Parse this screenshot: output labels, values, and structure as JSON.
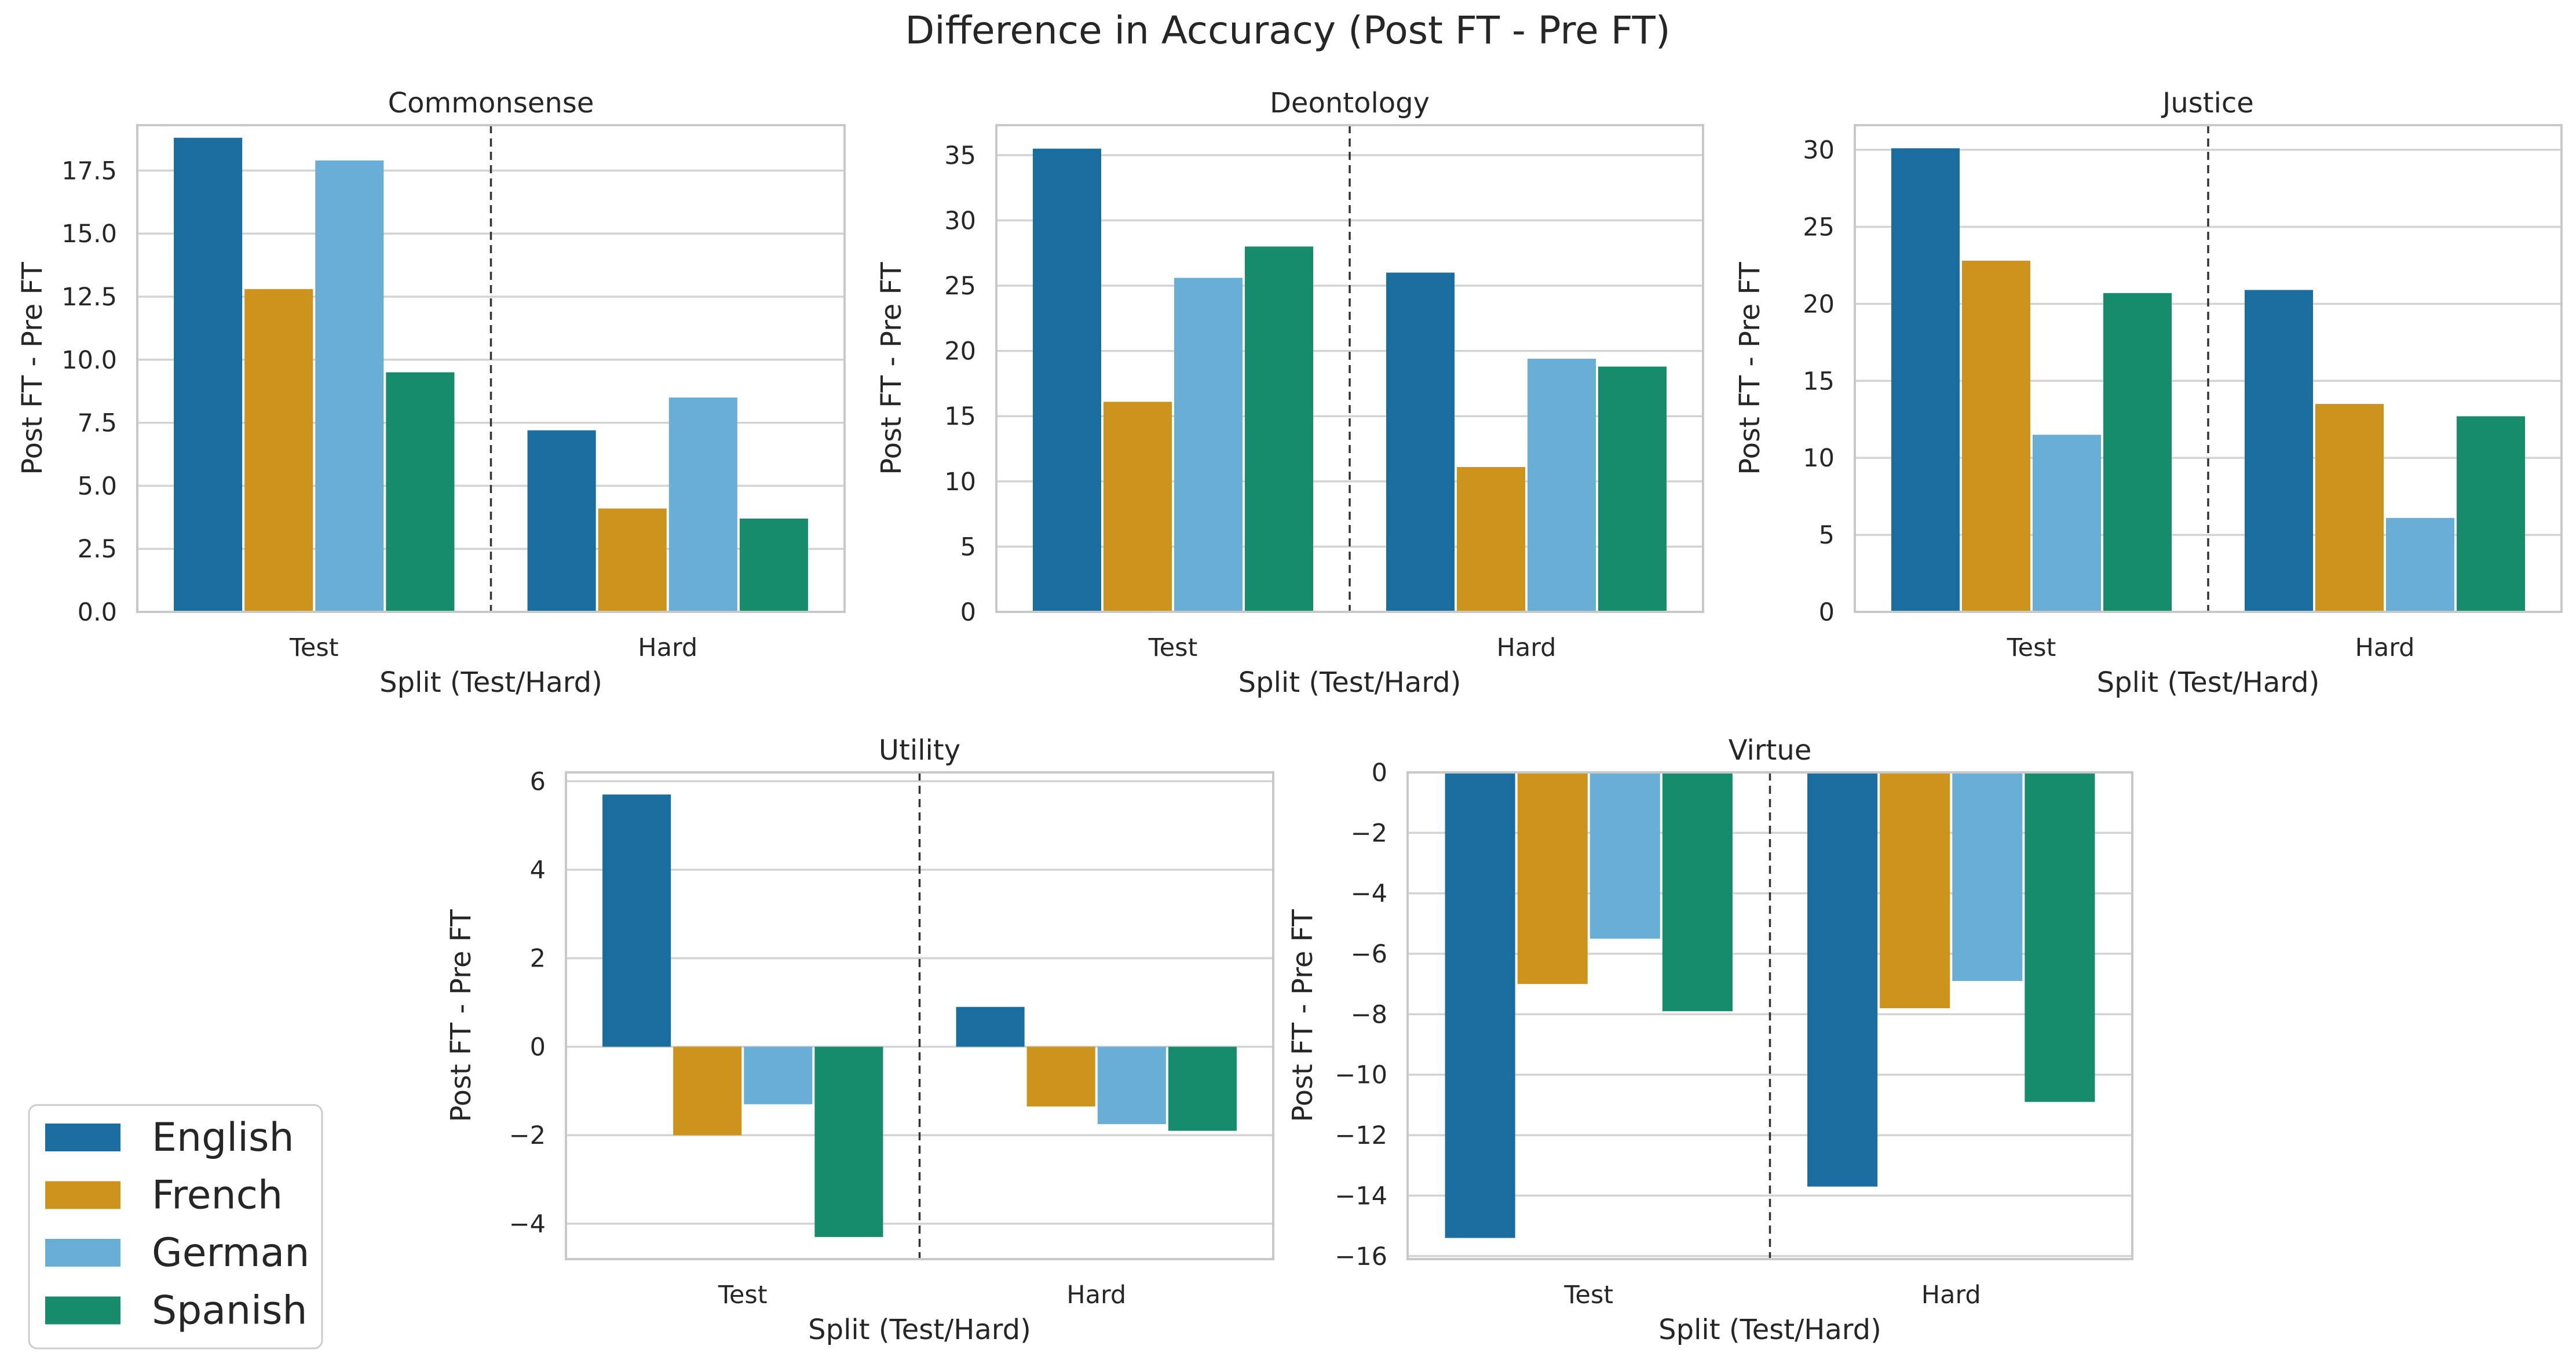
{
  "figure": {
    "title": "Difference in Accuracy (Post FT - Pre FT)"
  },
  "colors": {
    "English": "#1a6d9f",
    "French": "#cc931d",
    "German": "#69aed6",
    "Spanish": "#168c6c",
    "grid": "#d3d3d3",
    "spine": "#c8c8c8",
    "divider": "#333333"
  },
  "legend": {
    "placement": "bottom-left",
    "entries": [
      "English",
      "French",
      "German",
      "Spanish"
    ]
  },
  "chart_data": [
    {
      "type": "bar",
      "title": "Commonsense",
      "xlabel": "Split (Test/Hard)",
      "ylabel": "Post FT - Pre FT",
      "categories": [
        "Test",
        "Hard"
      ],
      "ylim": [
        0,
        19.3
      ],
      "ticks": [
        0,
        2.5,
        5,
        7.5,
        10,
        12.5,
        15,
        17.5
      ],
      "tick_labels": [
        "0.0",
        "2.5",
        "5.0",
        "7.5",
        "10.0",
        "12.5",
        "15.0",
        "17.5"
      ],
      "grid": true,
      "series": [
        {
          "name": "English",
          "values": [
            18.8,
            7.2
          ]
        },
        {
          "name": "French",
          "values": [
            12.8,
            4.1
          ]
        },
        {
          "name": "German",
          "values": [
            17.9,
            8.5
          ]
        },
        {
          "name": "Spanish",
          "values": [
            9.5,
            3.7
          ]
        }
      ]
    },
    {
      "type": "bar",
      "title": "Deontology",
      "xlabel": "Split (Test/Hard)",
      "ylabel": "Post FT - Pre FT",
      "categories": [
        "Test",
        "Hard"
      ],
      "ylim": [
        0,
        37.3
      ],
      "ticks": [
        0,
        5,
        10,
        15,
        20,
        25,
        30,
        35
      ],
      "tick_labels": [
        "0",
        "5",
        "10",
        "15",
        "20",
        "25",
        "30",
        "35"
      ],
      "grid": true,
      "series": [
        {
          "name": "English",
          "values": [
            35.5,
            26.0
          ]
        },
        {
          "name": "French",
          "values": [
            16.1,
            11.1
          ]
        },
        {
          "name": "German",
          "values": [
            25.6,
            19.4
          ]
        },
        {
          "name": "Spanish",
          "values": [
            28.0,
            18.8
          ]
        }
      ]
    },
    {
      "type": "bar",
      "title": "Justice",
      "xlabel": "Split (Test/Hard)",
      "ylabel": "Post FT - Pre FT",
      "categories": [
        "Test",
        "Hard"
      ],
      "ylim": [
        0,
        31.6
      ],
      "ticks": [
        0,
        5,
        10,
        15,
        20,
        25,
        30
      ],
      "tick_labels": [
        "0",
        "5",
        "10",
        "15",
        "20",
        "25",
        "30"
      ],
      "grid": true,
      "series": [
        {
          "name": "English",
          "values": [
            30.1,
            20.9
          ]
        },
        {
          "name": "French",
          "values": [
            22.8,
            13.5
          ]
        },
        {
          "name": "German",
          "values": [
            11.5,
            6.1
          ]
        },
        {
          "name": "Spanish",
          "values": [
            20.7,
            12.7
          ]
        }
      ]
    },
    {
      "type": "bar",
      "title": "Utility",
      "xlabel": "Split (Test/Hard)",
      "ylabel": "Post FT - Pre FT",
      "categories": [
        "Test",
        "Hard"
      ],
      "ylim": [
        -4.8,
        6.2
      ],
      "ticks": [
        -4,
        -2,
        0,
        2,
        4,
        6
      ],
      "tick_labels": [
        "−4",
        "−2",
        "0",
        "2",
        "4",
        "6"
      ],
      "grid": true,
      "series": [
        {
          "name": "English",
          "values": [
            5.7,
            0.9
          ]
        },
        {
          "name": "French",
          "values": [
            -2.0,
            -1.35
          ]
        },
        {
          "name": "German",
          "values": [
            -1.3,
            -1.75
          ]
        },
        {
          "name": "Spanish",
          "values": [
            -4.3,
            -1.9
          ]
        }
      ]
    },
    {
      "type": "bar",
      "title": "Virtue",
      "xlabel": "Split (Test/Hard)",
      "ylabel": "Post FT - Pre FT",
      "categories": [
        "Test",
        "Hard"
      ],
      "ylim": [
        -16.1,
        0
      ],
      "ticks": [
        -16,
        -14,
        -12,
        -10,
        -8,
        -6,
        -4,
        -2,
        0
      ],
      "tick_labels": [
        "−16",
        "−14",
        "−12",
        "−10",
        "−8",
        "−6",
        "−4",
        "−2",
        "0"
      ],
      "grid": true,
      "series": [
        {
          "name": "English",
          "values": [
            -15.4,
            -13.7
          ]
        },
        {
          "name": "French",
          "values": [
            -7.0,
            -7.8
          ]
        },
        {
          "name": "German",
          "values": [
            -5.5,
            -6.9
          ]
        },
        {
          "name": "Spanish",
          "values": [
            -7.9,
            -10.9
          ]
        }
      ]
    }
  ]
}
